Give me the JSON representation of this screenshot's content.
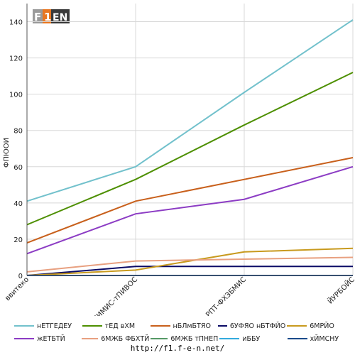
{
  "page": {
    "url": "http://f1.f-e-n.net/"
  },
  "logo": {
    "text": "F1EN"
  },
  "chart_data": {
    "type": "line",
    "title": "",
    "xlabel": "",
    "ylabel": "ФПЮОИ",
    "ylim": [
      0,
      150
    ],
    "yticks": [
      0,
      20,
      40,
      60,
      80,
      100,
      120,
      140
    ],
    "grid": true,
    "legend_position": "bottom",
    "categories": [
      "ввитеко",
      "еНИМИС-тПИВОС",
      "РПТ-ФХЗБМИС",
      "ЙУРБОЙС"
    ],
    "series": [
      {
        "name": "нЕТГЕДЕУ",
        "color": "#72c1cc",
        "values": [
          41,
          60,
          101,
          141
        ]
      },
      {
        "name": "тЕД вХМ",
        "color": "#4d8f00",
        "values": [
          28,
          53,
          83,
          112
        ]
      },
      {
        "name": "нБЛмБТЯО",
        "color": "#c8601c",
        "values": [
          18,
          41,
          53,
          65
        ]
      },
      {
        "name": "6УФЯО нБТФЙО",
        "color": "#0a0a66",
        "values": [
          0,
          5,
          5,
          5
        ]
      },
      {
        "name": "6МРЙО",
        "color": "#c89a1e",
        "values": [
          0,
          3,
          13,
          15
        ]
      },
      {
        "name": "жЕТБТЙ",
        "color": "#8c3cc4",
        "values": [
          12,
          34,
          42,
          60
        ]
      },
      {
        "name": "6МЖБ ФБХТЙ",
        "color": "#e8a080",
        "values": [
          2,
          8,
          9,
          10
        ]
      },
      {
        "name": "6МЖБ тПНЕП",
        "color": "#559966",
        "values": [
          0,
          0,
          0,
          0
        ]
      },
      {
        "name": "иББУ",
        "color": "#33aadd",
        "values": [
          0,
          0,
          0,
          0
        ]
      },
      {
        "name": "хЙМСНУ",
        "color": "#1a4a8a",
        "values": [
          0,
          0,
          0,
          0
        ]
      }
    ]
  }
}
